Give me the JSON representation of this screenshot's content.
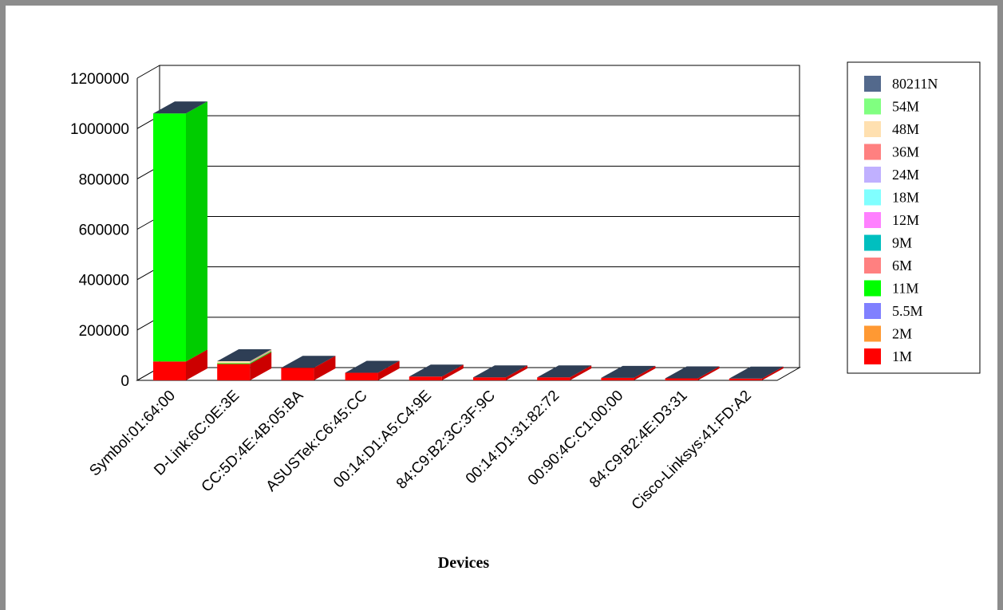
{
  "chart_data": {
    "type": "bar",
    "stacked": true,
    "three_d": true,
    "title": "",
    "xlabel": "Devices",
    "ylabel": "",
    "ylim": [
      0,
      1200000
    ],
    "yticks": [
      0,
      200000,
      400000,
      600000,
      800000,
      1000000,
      1200000
    ],
    "ytick_labels": [
      "0",
      "200000",
      "400000",
      "600000",
      "800000",
      "1000000",
      "1200000"
    ],
    "grid": true,
    "legend_position": "right",
    "categories": [
      "Symbol:01:64:00",
      "D-Link:6C:0E:3E",
      "CC:5D:4E:4B:05:BA",
      "ASUSTek:C6:45:CC",
      "00:14:D1:A5:C4:9E",
      "84:C9:B2:3C:3F:9C",
      "00:14:D1:31:82:72",
      "00:90:4C:C1:00:00",
      "84:C9:B2:4E:D3:31",
      "Cisco-Linksys:41:FD:A2"
    ],
    "series": [
      {
        "name": "1M",
        "color": "#ff0000",
        "values": [
          75000,
          65000,
          50000,
          30000,
          15000,
          12000,
          12000,
          10000,
          8000,
          7000
        ]
      },
      {
        "name": "2M",
        "color": "#ff9933",
        "values": [
          0,
          0,
          0,
          0,
          0,
          0,
          0,
          0,
          0,
          0
        ]
      },
      {
        "name": "5.5M",
        "color": "#8080ff",
        "values": [
          0,
          0,
          0,
          0,
          0,
          0,
          0,
          0,
          0,
          0
        ]
      },
      {
        "name": "11M",
        "color": "#00ff00",
        "values": [
          985000,
          3000,
          0,
          0,
          0,
          0,
          0,
          0,
          0,
          0
        ]
      },
      {
        "name": "6M",
        "color": "#ff8080",
        "values": [
          0,
          0,
          0,
          0,
          0,
          0,
          0,
          0,
          0,
          0
        ]
      },
      {
        "name": "9M",
        "color": "#00bfbf",
        "values": [
          0,
          0,
          0,
          0,
          0,
          0,
          0,
          0,
          0,
          0
        ]
      },
      {
        "name": "12M",
        "color": "#ff80ff",
        "values": [
          0,
          0,
          0,
          0,
          0,
          0,
          0,
          0,
          0,
          0
        ]
      },
      {
        "name": "18M",
        "color": "#80ffff",
        "values": [
          0,
          0,
          0,
          0,
          0,
          0,
          0,
          0,
          0,
          0
        ]
      },
      {
        "name": "24M",
        "color": "#c0b0ff",
        "values": [
          0,
          0,
          0,
          0,
          0,
          0,
          0,
          0,
          0,
          0
        ]
      },
      {
        "name": "36M",
        "color": "#ff8080",
        "values": [
          0,
          0,
          0,
          0,
          0,
          0,
          0,
          0,
          0,
          0
        ]
      },
      {
        "name": "48M",
        "color": "#ffe0b0",
        "values": [
          0,
          8000,
          0,
          0,
          0,
          0,
          0,
          0,
          0,
          0
        ]
      },
      {
        "name": "54M",
        "color": "#80ff80",
        "values": [
          0,
          0,
          0,
          0,
          0,
          0,
          0,
          0,
          0,
          0
        ]
      },
      {
        "name": "80211N",
        "color": "#53698c",
        "values": [
          0,
          0,
          0,
          0,
          0,
          0,
          0,
          0,
          0,
          0
        ]
      }
    ],
    "top_face_color": "#2e3e55"
  }
}
